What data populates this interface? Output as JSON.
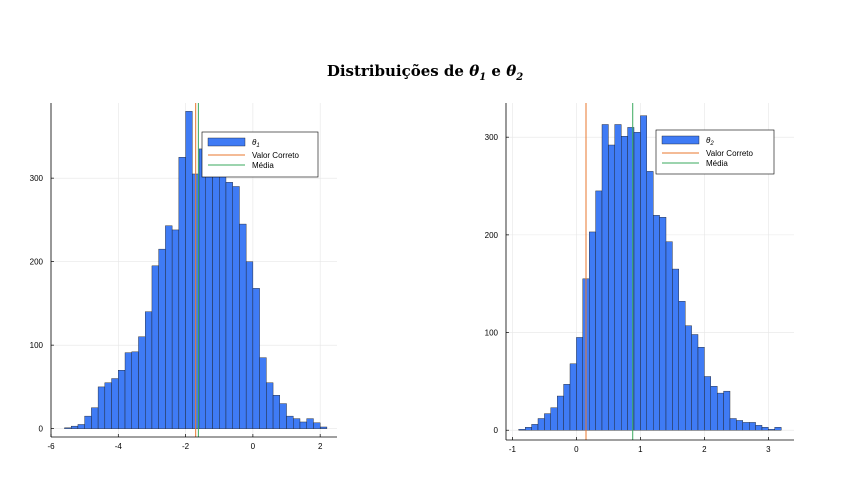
{
  "title_prefix": "Distribuições de ",
  "chart_data": [
    {
      "type": "bar",
      "name_label": "θ",
      "name_sub": "1",
      "bin_width": 0.2,
      "bin_starts": [
        -5.6,
        -5.4,
        -5.2,
        -5.0,
        -4.8,
        -4.6,
        -4.4,
        -4.2,
        -4.0,
        -3.8,
        -3.6,
        -3.4,
        -3.2,
        -3.0,
        -2.8,
        -2.6,
        -2.4,
        -2.2,
        -2.0,
        -1.8,
        -1.6,
        -1.4,
        -1.2,
        -1.0,
        -0.8,
        -0.6,
        -0.4,
        -0.2,
        0.0,
        0.2,
        0.4,
        0.6,
        0.8,
        1.0,
        1.2,
        1.4,
        1.6,
        1.8,
        2.0
      ],
      "values": [
        1,
        3,
        5,
        15,
        25,
        50,
        55,
        60,
        70,
        91,
        92,
        110,
        140,
        195,
        215,
        243,
        238,
        325,
        380,
        305,
        335,
        320,
        345,
        305,
        295,
        290,
        245,
        200,
        168,
        85,
        55,
        40,
        30,
        15,
        12,
        8,
        12,
        7,
        2
      ],
      "xlim": [
        -6.0,
        2.5
      ],
      "ylim": [
        -10,
        390
      ],
      "xticks": [
        -6,
        -4,
        -2,
        0,
        2
      ],
      "yticks": [
        0,
        100,
        200,
        300
      ],
      "valor_correto": -1.7,
      "media": -1.62,
      "legend": {
        "valor_label": "Valor Correto",
        "media_label": "Média"
      }
    },
    {
      "type": "bar",
      "name_label": "θ",
      "name_sub": "2",
      "bin_width": 0.1,
      "bin_starts": [
        -0.9,
        -0.8,
        -0.7,
        -0.6,
        -0.5,
        -0.4,
        -0.3,
        -0.2,
        -0.1,
        0.0,
        0.1,
        0.2,
        0.3,
        0.4,
        0.5,
        0.6,
        0.7,
        0.8,
        0.9,
        1.0,
        1.1,
        1.2,
        1.3,
        1.4,
        1.5,
        1.6,
        1.7,
        1.8,
        1.9,
        2.0,
        2.1,
        2.2,
        2.3,
        2.4,
        2.5,
        2.6,
        2.7,
        2.8,
        2.9,
        3.0,
        3.1
      ],
      "values": [
        1,
        3,
        6,
        12,
        17,
        23,
        35,
        47,
        68,
        95,
        155,
        203,
        245,
        313,
        292,
        313,
        301,
        310,
        305,
        322,
        265,
        220,
        218,
        193,
        165,
        132,
        107,
        98,
        85,
        55,
        45,
        38,
        40,
        12,
        10,
        8,
        8,
        5,
        3,
        1,
        3
      ],
      "xlim": [
        -1.1,
        3.4
      ],
      "ylim": [
        -10,
        335
      ],
      "xticks": [
        -1,
        0,
        1,
        2,
        3
      ],
      "yticks": [
        0,
        100,
        200,
        300
      ],
      "valor_correto": 0.15,
      "media": 0.88,
      "legend": {
        "valor_label": "Valor Correto",
        "media_label": "Média"
      }
    }
  ],
  "colors": {
    "bar": "#3f7bf5",
    "bar_edge": "#1a1a1a",
    "valor": "#e8772e",
    "media": "#3aaa5e",
    "grid": "#e6e6e6",
    "axis": "#000000"
  }
}
